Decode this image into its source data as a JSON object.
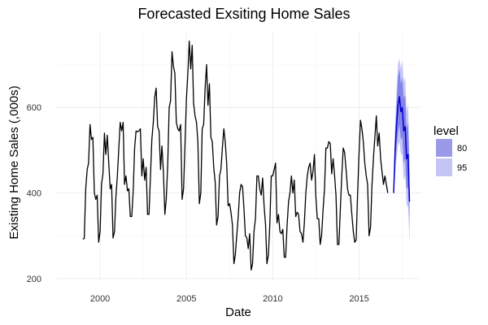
{
  "chart_data": {
    "type": "line",
    "title": "Forecasted Exsiting Home Sales",
    "xlabel": "Date",
    "ylabel": "Existing Home Sales (,000s)",
    "xlim": [
      1997.5,
      2018.6
    ],
    "ylim": [
      196,
      775
    ],
    "x_ticks": [
      2000,
      2005,
      2010,
      2015
    ],
    "x_tick_labels": [
      "2000",
      "2005",
      "2010",
      "2015"
    ],
    "y_ticks": [
      200,
      400,
      600
    ],
    "y_tick_labels": [
      "200",
      "400",
      "600"
    ],
    "grid": true,
    "legend": {
      "title": "level",
      "position": "right",
      "entries": [
        {
          "label": "80",
          "color": "#9a9ae8"
        },
        {
          "label": "95",
          "color": "#c5c5f5"
        }
      ]
    },
    "colors": {
      "historical": "#000000",
      "forecast": "#0000cc",
      "band80": "#7777e6",
      "band95": "#c0c0f8"
    },
    "series": [
      {
        "role": "historical",
        "start": 1999.0,
        "step": 0.0833,
        "values": [
          292,
          294,
          410,
          455,
          470,
          560,
          525,
          530,
          400,
          385,
          395,
          285,
          310,
          420,
          445,
          540,
          490,
          535,
          470,
          410,
          420,
          295,
          310,
          390,
          440,
          505,
          565,
          545,
          565,
          420,
          440,
          405,
          410,
          345,
          345,
          405,
          505,
          545,
          543,
          545,
          550,
          440,
          480,
          430,
          460,
          350,
          350,
          440,
          525,
          565,
          625,
          645,
          555,
          545,
          455,
          510,
          450,
          350,
          385,
          465,
          600,
          615,
          730,
          695,
          680,
          565,
          550,
          545,
          560,
          385,
          410,
          510,
          620,
          680,
          755,
          690,
          745,
          610,
          580,
          565,
          520,
          375,
          400,
          550,
          560,
          645,
          700,
          605,
          655,
          530,
          520,
          460,
          425,
          325,
          345,
          440,
          455,
          505,
          550,
          520,
          470,
          370,
          375,
          355,
          325,
          235,
          255,
          300,
          345,
          400,
          420,
          415,
          365,
          300,
          295,
          270,
          305,
          220,
          235,
          310,
          340,
          440,
          440,
          410,
          395,
          435,
          370,
          325,
          235,
          255,
          330,
          440,
          440,
          455,
          470,
          330,
          350,
          310,
          305,
          315,
          250,
          250,
          325,
          380,
          400,
          440,
          400,
          430,
          345,
          355,
          350,
          310,
          305,
          285,
          330,
          400,
          440,
          460,
          470,
          430,
          450,
          490,
          390,
          340,
          340,
          280,
          300,
          360,
          410,
          505,
          505,
          520,
          515,
          445,
          480,
          440,
          395,
          280,
          280,
          360,
          440,
          505,
          495,
          455,
          410,
          395,
          395,
          350,
          310,
          285,
          290,
          400,
          490,
          570,
          550,
          520,
          470,
          440,
          420,
          300,
          320,
          415,
          480,
          530,
          580,
          510,
          540,
          480,
          450,
          420,
          440,
          420,
          400
        ]
      },
      {
        "role": "forecast",
        "start": 2017.0,
        "step": 0.0833,
        "values": [
          400,
          500,
          560,
          605,
          625,
          590,
          600,
          545,
          555,
          480,
          490,
          380
        ],
        "lo80": [
          395,
          460,
          510,
          540,
          560,
          525,
          530,
          470,
          480,
          410,
          415,
          320
        ],
        "hi80": [
          405,
          540,
          610,
          670,
          690,
          655,
          670,
          620,
          630,
          550,
          565,
          440
        ],
        "lo95": [
          390,
          440,
          480,
          510,
          520,
          490,
          490,
          430,
          440,
          370,
          370,
          280
        ],
        "hi95": [
          410,
          560,
          640,
          700,
          715,
          690,
          710,
          660,
          670,
          590,
          610,
          480
        ]
      }
    ]
  }
}
